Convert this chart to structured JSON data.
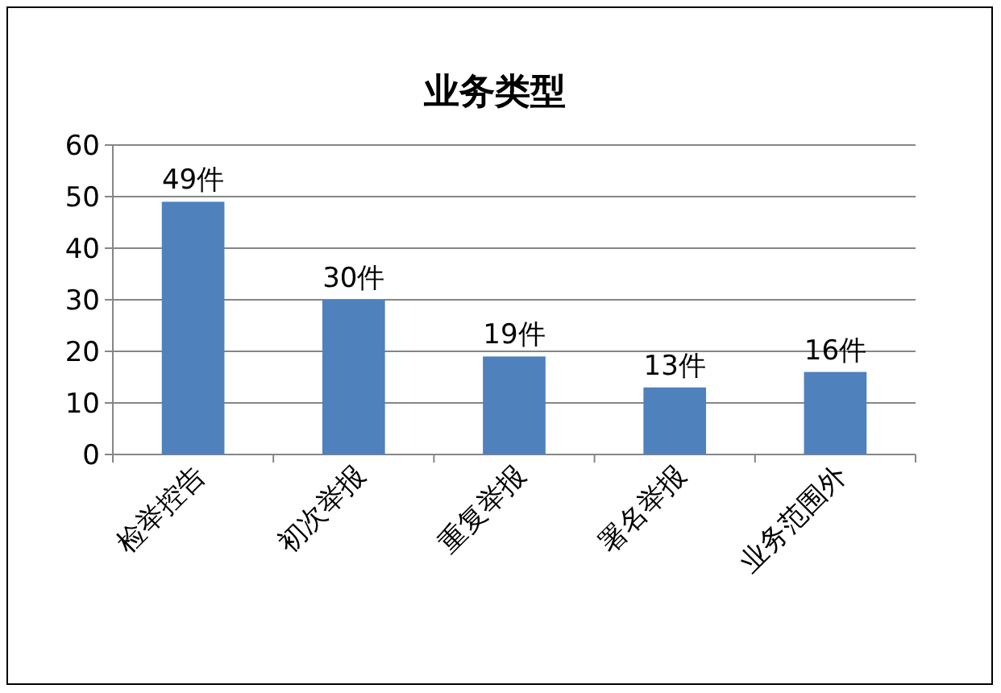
{
  "chart_data": {
    "type": "bar",
    "title": "业务类型",
    "categories": [
      "检举控告",
      "初次举报",
      "重复举报",
      "署名举报",
      "业务范围外"
    ],
    "values": [
      49,
      30,
      19,
      13,
      16
    ],
    "value_labels": [
      "49件",
      "30件",
      "19件",
      "13件",
      "16件"
    ],
    "color": "#4f81bd",
    "ylim": [
      0,
      60
    ],
    "yticks": [
      0,
      10,
      20,
      30,
      40,
      50,
      60
    ],
    "grid": "y"
  }
}
